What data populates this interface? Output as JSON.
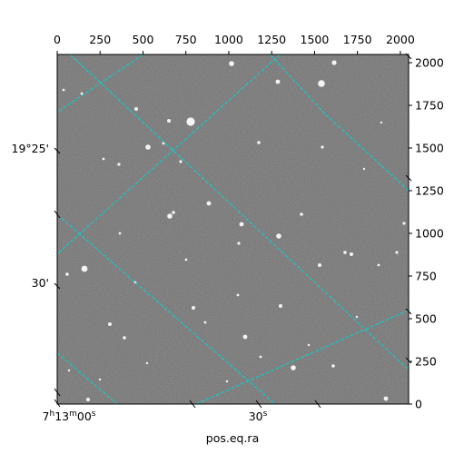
{
  "chart_data": {
    "type": "image",
    "title": "",
    "xlabel": "pos.eq.ra",
    "ylabel": "",
    "pixel_axes": {
      "x_ticks": [
        0,
        250,
        500,
        750,
        1000,
        1250,
        1500,
        1750,
        2000
      ],
      "y_ticks": [
        0,
        250,
        500,
        750,
        1000,
        1250,
        1500,
        1750,
        2000
      ],
      "xlim": [
        0,
        2048
      ],
      "ylim": [
        0,
        2048
      ]
    },
    "world_axes": {
      "ra_tick_labels": [
        "7h13m00s",
        "30s"
      ],
      "dec_tick_labels": [
        "19°25'",
        "30'"
      ]
    },
    "grid": true,
    "grid_color": "#00d8d8",
    "image_colormap": "grayscale",
    "grid_lines": [
      {
        "from": [
          75,
          2048
        ],
        "to": [
          2048,
          200
        ]
      },
      {
        "from": [
          0,
          1110
        ],
        "to": [
          1270,
          0
        ]
      },
      {
        "from": [
          0,
          300
        ],
        "to": [
          350,
          0
        ]
      },
      {
        "from": [
          500,
          2048
        ],
        "to": [
          0,
          1710
        ]
      },
      {
        "from": [
          1300,
          2048
        ],
        "to": [
          0,
          880
        ]
      },
      {
        "from": [
          2048,
          1250
        ],
        "to": [
          1560,
          1700
        ]
      },
      {
        "from": [
          1560,
          1700
        ],
        "to": [
          1240,
          2048
        ]
      },
      {
        "from": [
          2048,
          550
        ],
        "to": [
          810,
          0
        ]
      }
    ]
  }
}
